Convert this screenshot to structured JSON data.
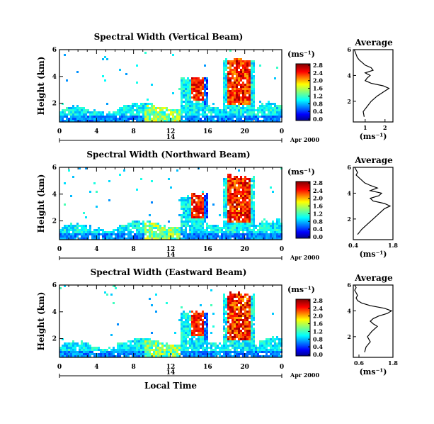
{
  "figure": {
    "xlabel": "Local Time",
    "date_label": "Apr 2000",
    "day_label": "14"
  },
  "chart_data": [
    {
      "type": "heatmap",
      "title": "Spectral Width (Vertical Beam)",
      "ylabel": "Height (km)",
      "x_ticks": [
        "0",
        "4",
        "8",
        "12",
        "16",
        "20",
        "0"
      ],
      "y_ticks": [
        "2",
        "4",
        "6"
      ],
      "xlim": [
        0,
        24
      ],
      "ylim": [
        0.6,
        6
      ],
      "colorbar_unit": "(ms⁻¹)",
      "colorbar_ticks": [
        "0.0",
        "0.4",
        "0.8",
        "1.2",
        "1.6",
        "2.0",
        "2.4",
        "2.8"
      ],
      "colorbar_range": [
        0,
        3.0
      ],
      "profile_title": "Average",
      "profile_xlabel": "(ms⁻¹)",
      "profile_xticks": [
        "1",
        "2"
      ],
      "profile_xlim": [
        0.4,
        2.4
      ],
      "profile_yticks": [
        "2",
        "4",
        "6"
      ],
      "profile": [
        [
          0.95,
          0.8
        ],
        [
          0.9,
          1.2
        ],
        [
          1.1,
          1.6
        ],
        [
          1.3,
          2.0
        ],
        [
          1.6,
          2.4
        ],
        [
          2.0,
          2.8
        ],
        [
          2.2,
          3.0
        ],
        [
          1.9,
          3.2
        ],
        [
          1.3,
          3.4
        ],
        [
          1.0,
          3.6
        ],
        [
          1.1,
          3.8
        ],
        [
          1.25,
          4.0
        ],
        [
          1.0,
          4.2
        ],
        [
          1.4,
          4.4
        ],
        [
          1.3,
          4.6
        ],
        [
          1.0,
          4.8
        ],
        [
          0.85,
          5.0
        ],
        [
          0.7,
          5.2
        ],
        [
          0.6,
          5.4
        ],
        [
          0.55,
          5.6
        ],
        [
          0.5,
          5.8
        ],
        [
          0.45,
          6.0
        ]
      ]
    },
    {
      "type": "heatmap",
      "title": "Spectral Width (Northward Beam)",
      "ylabel": "Height (km)",
      "x_ticks": [
        "0",
        "4",
        "8",
        "12",
        "16",
        "20",
        "0"
      ],
      "y_ticks": [
        "2",
        "4",
        "6"
      ],
      "xlim": [
        0,
        24
      ],
      "ylim": [
        0.6,
        6
      ],
      "colorbar_unit": "(ms⁻¹)",
      "colorbar_ticks": [
        "0.0",
        "0.4",
        "0.8",
        "1.2",
        "1.6",
        "2.0",
        "2.4",
        "2.8"
      ],
      "colorbar_range": [
        0,
        3.0
      ],
      "profile_title": "Average",
      "profile_xlabel": "(ms⁻¹)",
      "profile_xticks": [
        "0.4",
        "1.8"
      ],
      "profile_xlim": [
        0.4,
        1.8
      ],
      "profile_yticks": [
        "2",
        "4",
        "6"
      ],
      "profile": [
        [
          0.55,
          0.8
        ],
        [
          0.7,
          1.2
        ],
        [
          0.9,
          1.6
        ],
        [
          1.1,
          2.0
        ],
        [
          1.3,
          2.4
        ],
        [
          1.5,
          2.8
        ],
        [
          1.7,
          3.0
        ],
        [
          1.5,
          3.2
        ],
        [
          1.1,
          3.4
        ],
        [
          1.0,
          3.6
        ],
        [
          1.3,
          3.8
        ],
        [
          1.4,
          4.0
        ],
        [
          1.0,
          4.2
        ],
        [
          1.25,
          4.4
        ],
        [
          1.0,
          4.6
        ],
        [
          0.8,
          4.8
        ],
        [
          0.7,
          5.0
        ],
        [
          0.6,
          5.2
        ],
        [
          0.5,
          5.4
        ],
        [
          0.55,
          5.6
        ],
        [
          0.5,
          5.8
        ],
        [
          0.45,
          6.0
        ]
      ]
    },
    {
      "type": "heatmap",
      "title": "Spectral Width (Eastward Beam)",
      "ylabel": "Height (km)",
      "x_ticks": [
        "0",
        "4",
        "8",
        "12",
        "16",
        "20",
        "0"
      ],
      "y_ticks": [
        "2",
        "4",
        "6"
      ],
      "xlim": [
        0,
        24
      ],
      "ylim": [
        0.6,
        6
      ],
      "colorbar_unit": "(ms⁻¹)",
      "colorbar_ticks": [
        "0.0",
        "0.4",
        "0.8",
        "1.2",
        "1.6",
        "2.0",
        "2.4",
        "2.8"
      ],
      "colorbar_range": [
        0,
        3.0
      ],
      "profile_title": "Average",
      "profile_xlabel": "(ms⁻¹)",
      "profile_xticks": [
        "0.6",
        "1.8"
      ],
      "profile_xlim": [
        0.4,
        1.8
      ],
      "profile_yticks": [
        "2",
        "4",
        "6"
      ],
      "profile": [
        [
          0.8,
          0.8
        ],
        [
          0.85,
          1.2
        ],
        [
          1.0,
          1.6
        ],
        [
          0.9,
          2.0
        ],
        [
          1.05,
          2.4
        ],
        [
          1.25,
          2.8
        ],
        [
          1.1,
          3.0
        ],
        [
          1.0,
          3.2
        ],
        [
          1.1,
          3.4
        ],
        [
          1.3,
          3.6
        ],
        [
          1.6,
          3.8
        ],
        [
          1.75,
          4.0
        ],
        [
          1.5,
          4.2
        ],
        [
          1.0,
          4.4
        ],
        [
          0.7,
          4.6
        ],
        [
          0.55,
          4.8
        ],
        [
          0.5,
          5.0
        ],
        [
          0.55,
          5.2
        ],
        [
          0.5,
          5.4
        ],
        [
          0.45,
          5.6
        ],
        [
          0.5,
          5.8
        ],
        [
          0.45,
          6.0
        ]
      ]
    }
  ]
}
